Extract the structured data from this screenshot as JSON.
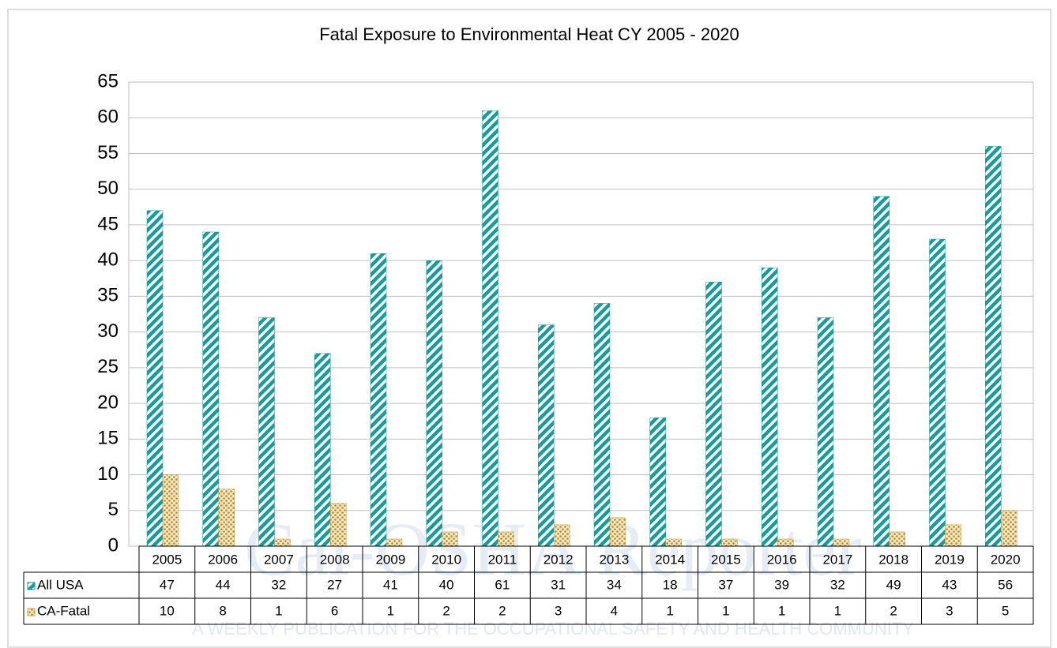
{
  "chart_data": {
    "type": "bar",
    "title": "Fatal Exposure to Environmental Heat CY 2005 - 2020",
    "categories": [
      "2005",
      "2006",
      "2007",
      "2008",
      "2009",
      "2010",
      "2011",
      "2012",
      "2013",
      "2014",
      "2015",
      "2016",
      "2017",
      "2018",
      "2019",
      "2020"
    ],
    "series": [
      {
        "name": "All USA",
        "color": "#1a9b9b",
        "values": [
          47,
          44,
          32,
          27,
          41,
          40,
          61,
          31,
          34,
          18,
          37,
          39,
          32,
          49,
          43,
          56
        ]
      },
      {
        "name": "CA-Fatal",
        "color": "#c9a13e",
        "values": [
          10,
          8,
          1,
          6,
          1,
          2,
          2,
          3,
          4,
          1,
          1,
          1,
          1,
          2,
          3,
          5
        ]
      }
    ],
    "ylim": [
      0,
      65
    ],
    "yticks": [
      0,
      5,
      10,
      15,
      20,
      25,
      30,
      35,
      40,
      45,
      50,
      55,
      60,
      65
    ],
    "grid": true,
    "watermark": "Cal-OSHA Reporter",
    "watermark_tagline": "A WEEKLY PUBLICATION FOR THE OCCUPATIONAL SAFETY AND HEALTH COMMUNITY"
  }
}
